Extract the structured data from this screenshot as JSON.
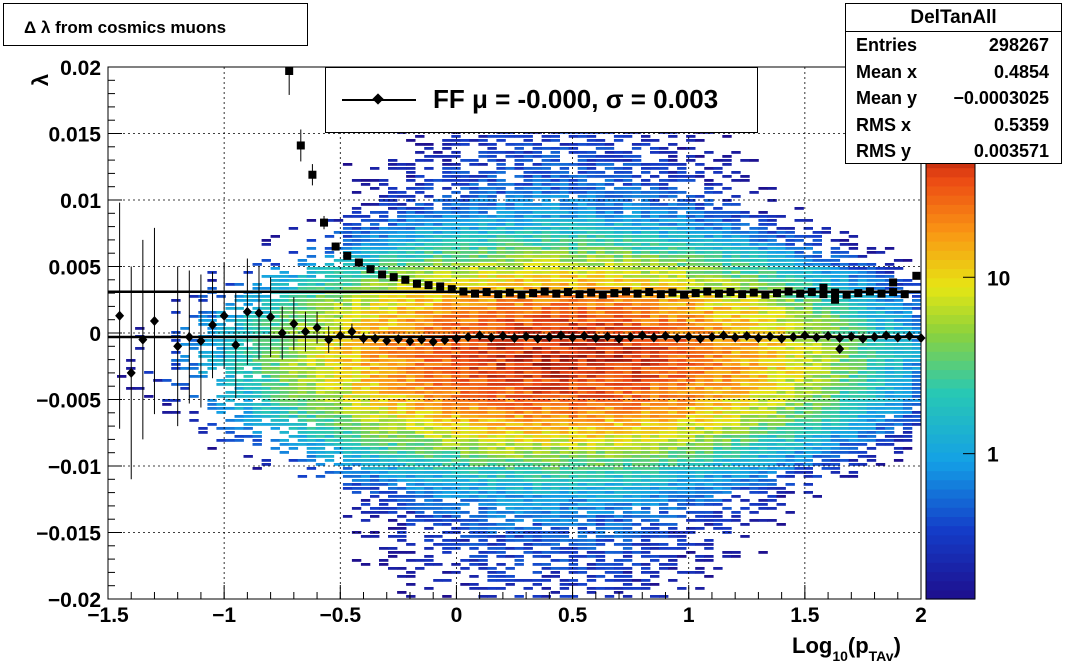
{
  "title": "Δ λ from cosmics muons",
  "stats": {
    "name": "DelTanAll",
    "rows": [
      {
        "key": "Entries",
        "value": "298267"
      },
      {
        "key": "Mean x",
        "value": "0.4854"
      },
      {
        "key": "Mean y",
        "value": "−0.0003025"
      },
      {
        "key": "RMS x",
        "value": "0.5359"
      },
      {
        "key": "RMS y",
        "value": "0.003571"
      }
    ]
  },
  "legend": {
    "text": "FF μ = -0.000, σ =   0.003"
  },
  "chart_data": {
    "type": "heatmap",
    "xlabel": "Log10(pTAv)",
    "xlabel_base": "Log",
    "xlabel_sub1": "10",
    "xlabel_mid": "(p",
    "xlabel_sub2": "TAv",
    "xlabel_end": ")",
    "ylabel": "λ",
    "xlim": [
      -1.5,
      2
    ],
    "ylim": [
      -0.02,
      0.02
    ],
    "x_ticks": [
      {
        "v": -1.5,
        "label": "−1.5"
      },
      {
        "v": -1,
        "label": "−1"
      },
      {
        "v": -0.5,
        "label": "−0.5"
      },
      {
        "v": 0,
        "label": "0"
      },
      {
        "v": 0.5,
        "label": "0.5"
      },
      {
        "v": 1,
        "label": "1"
      },
      {
        "v": 1.5,
        "label": "1.5"
      },
      {
        "v": 2,
        "label": "2"
      }
    ],
    "y_ticks": [
      {
        "v": 0.02,
        "label": "0.02"
      },
      {
        "v": 0.015,
        "label": "0.015"
      },
      {
        "v": 0.01,
        "label": "0.01"
      },
      {
        "v": 0.005,
        "label": "0.005"
      },
      {
        "v": 0,
        "label": "0"
      },
      {
        "v": -0.005,
        "label": "−0.005"
      },
      {
        "v": -0.01,
        "label": "−0.01"
      },
      {
        "v": -0.015,
        "label": "−0.015"
      },
      {
        "v": -0.02,
        "label": "−0.02"
      }
    ],
    "grid": true,
    "z_scale": "log",
    "z_ticks": [
      {
        "v": 10,
        "label": "10"
      },
      {
        "v": 1,
        "label": "1"
      }
    ],
    "z_range": [
      0.15,
      60
    ],
    "density_model": {
      "x_center": 0.45,
      "x_sigma": 0.55,
      "y_center": -0.0018,
      "y_sigma": 0.0034,
      "peak": 45
    },
    "series": [
      {
        "name": "mean",
        "marker": "diamond",
        "points": [
          [
            -1.45,
            0.0013,
            0.0085
          ],
          [
            -1.4,
            -0.003,
            0.008
          ],
          [
            -1.35,
            -0.0005,
            0.0075
          ],
          [
            -1.3,
            0.0009,
            0.007
          ],
          [
            -1.2,
            -0.001,
            0.006
          ],
          [
            -1.15,
            -0.0003,
            0.005
          ],
          [
            -1.1,
            -0.0006,
            0.005
          ],
          [
            -1.05,
            0.0006,
            0.004
          ],
          [
            -1.0,
            0.0013,
            0.004
          ],
          [
            -0.95,
            -0.0009,
            0.004
          ],
          [
            -0.9,
            0.0016,
            0.004
          ],
          [
            -0.85,
            0.0015,
            0.0035
          ],
          [
            -0.8,
            0.0012,
            0.003
          ],
          [
            -0.75,
            0.0,
            0.002
          ],
          [
            -0.7,
            0.0007,
            0.002
          ],
          [
            -0.65,
            0.0001,
            0.0015
          ],
          [
            -0.6,
            0.0004,
            0.0012
          ],
          [
            -0.55,
            -0.0005,
            0.001
          ],
          [
            -0.5,
            -0.0002,
            0.0008
          ],
          [
            -0.45,
            0.0001,
            0.0006
          ],
          [
            -0.4,
            -0.0004,
            0.0004
          ]
        ],
        "flat_value": -0.0003,
        "flat_from": -0.35,
        "flat_to": 2.0,
        "flat_step": 0.05,
        "extra": [
          [
            1.65,
            -0.0012
          ]
        ],
        "fit": -0.0003
      },
      {
        "name": "sigma",
        "marker": "square",
        "points": [
          [
            -0.72,
            0.0197,
            0.0018
          ],
          [
            -0.67,
            0.0141,
            0.0012
          ],
          [
            -0.62,
            0.0119,
            0.0008
          ],
          [
            -0.57,
            0.0083,
            0.0005
          ],
          [
            -0.52,
            0.0065,
            0.0003
          ],
          [
            -0.47,
            0.0058,
            0.0002
          ],
          [
            -0.42,
            0.0053,
            0.0001
          ],
          [
            -0.37,
            0.0048,
            0.0001
          ],
          [
            -0.32,
            0.0044,
            0.0001
          ],
          [
            -0.27,
            0.0042,
            0
          ],
          [
            -0.22,
            0.004,
            0
          ],
          [
            -0.17,
            0.0037,
            0
          ],
          [
            -0.12,
            0.0036,
            0
          ],
          [
            -0.07,
            0.0035,
            0
          ],
          [
            -0.02,
            0.0033,
            0
          ]
        ],
        "flat_value": 0.003,
        "flat_from": 0.03,
        "flat_to": 1.93,
        "flat_step": 0.05,
        "extra": [
          [
            1.58,
            0.0034
          ],
          [
            1.63,
            0.0025
          ],
          [
            1.88,
            0.0038
          ],
          [
            1.98,
            0.0043
          ]
        ],
        "fit": 0.0031
      }
    ]
  }
}
